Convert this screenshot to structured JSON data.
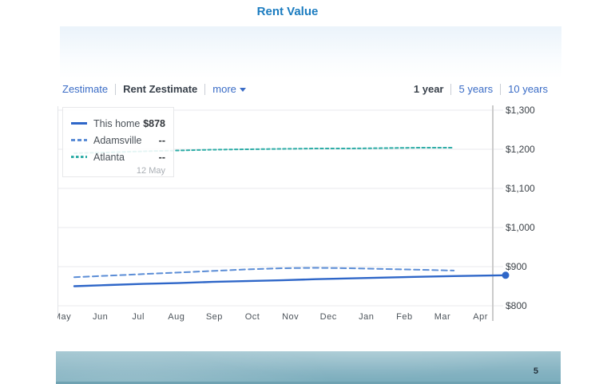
{
  "page": {
    "title": "Rent Value",
    "page_number": "5"
  },
  "colors": {
    "title_blue": "#1b7cc0",
    "link_blue": "#3a6cc6",
    "selected_text": "#39414b",
    "this_home_blue": "#2e66c8",
    "adamsville_blue": "#5b8dd6",
    "atlanta_teal": "#2fada7",
    "current_line_gray": "#cbcbcb",
    "footer_teal": "#84b2c1"
  },
  "tabs": {
    "left": [
      {
        "label": "Zestimate",
        "selected": false
      },
      {
        "label": "Rent Zestimate",
        "selected": true
      },
      {
        "label": "more",
        "selected": false,
        "dropdown": true
      }
    ],
    "right": [
      {
        "label": "1 year",
        "selected": true
      },
      {
        "label": "5 years",
        "selected": false
      },
      {
        "label": "10 years",
        "selected": false
      }
    ]
  },
  "legend": {
    "rows": [
      {
        "label": "This home",
        "value": "$878",
        "style": "solid",
        "color": "#2e66c8"
      },
      {
        "label": "Adamsville",
        "value": "--",
        "style": "dashed-wide",
        "color": "#5b8dd6"
      },
      {
        "label": "Atlanta",
        "value": "--",
        "style": "dashed-small",
        "color": "#2fada7"
      }
    ],
    "date_label": "12 May"
  },
  "chart_data": {
    "type": "line",
    "title": "Rent Value",
    "categories": [
      "May",
      "Jun",
      "Jul",
      "Aug",
      "Sep",
      "Oct",
      "Nov",
      "Dec",
      "Jan",
      "Feb",
      "Mar",
      "Apr"
    ],
    "series": [
      {
        "name": "This home",
        "color": "#2e66c8",
        "dash": "solid",
        "values": [
          850,
          853,
          856,
          858,
          861,
          863,
          865,
          868,
          870,
          872,
          874,
          876
        ],
        "current": {
          "label": "12 May",
          "value": 878
        }
      },
      {
        "name": "Adamsville",
        "color": "#5b8dd6",
        "dash": "dashed-wide",
        "values": [
          873,
          877,
          881,
          885,
          889,
          893,
          896,
          897,
          896,
          894,
          892,
          890
        ]
      },
      {
        "name": "Atlanta",
        "color": "#2fada7",
        "dash": "dashed-small",
        "values": [
          1190,
          1192,
          1195,
          1197,
          1199,
          1200,
          1201,
          1202,
          1202,
          1203,
          1204,
          1204
        ]
      }
    ],
    "ylim": [
      800,
      1300
    ],
    "yticks": [
      800,
      900,
      1000,
      1100,
      1200,
      1300
    ],
    "ytick_labels": [
      "$800",
      "$900",
      "$1,000",
      "$1,100",
      "$1,200",
      "$1,300"
    ],
    "xlabel": "",
    "ylabel": "",
    "grid": true,
    "legend_position": "top-left",
    "current_date_marker": "12 May"
  }
}
